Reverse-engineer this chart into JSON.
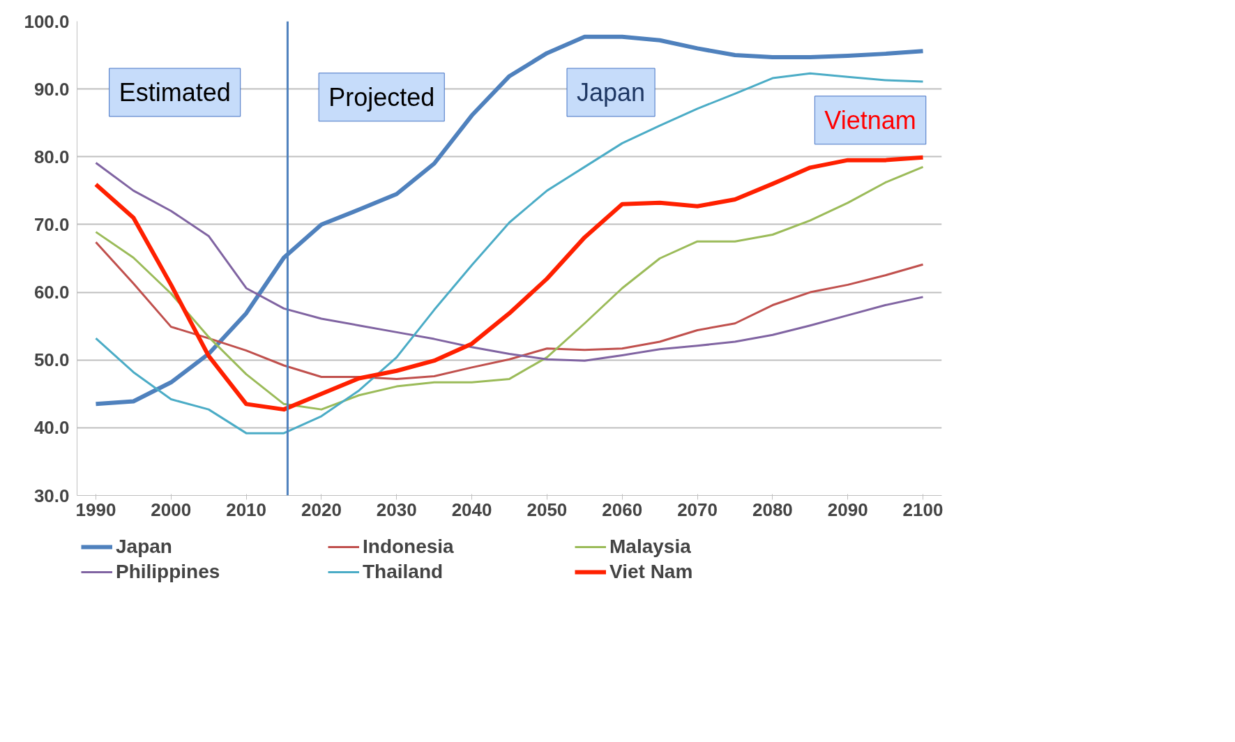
{
  "chart_data": {
    "type": "line",
    "x": [
      1990,
      1995,
      2000,
      2005,
      2010,
      2015,
      2020,
      2025,
      2030,
      2035,
      2040,
      2045,
      2050,
      2055,
      2060,
      2065,
      2070,
      2075,
      2080,
      2085,
      2090,
      2095,
      2100
    ],
    "series": [
      {
        "name": "Japan",
        "color": "#4f81bd",
        "values": [
          43.5,
          43.9,
          46.7,
          50.9,
          56.9,
          65.1,
          70.0,
          72.2,
          74.5,
          79.0,
          86.1,
          91.9,
          95.3,
          97.7,
          97.7,
          97.2,
          96.0,
          95.0,
          94.7,
          94.7,
          94.9,
          95.2,
          95.6
        ]
      },
      {
        "name": "Indonesia",
        "color": "#c0504d",
        "values": [
          67.4,
          61.3,
          54.9,
          53.2,
          51.4,
          49.2,
          47.5,
          47.5,
          47.2,
          47.6,
          48.9,
          50.1,
          51.7,
          51.5,
          51.7,
          52.7,
          54.4,
          55.4,
          58.1,
          60.0,
          61.1,
          62.5,
          64.1
        ]
      },
      {
        "name": "Malaysia",
        "color": "#9bbb59",
        "values": [
          68.9,
          65.1,
          59.8,
          53.4,
          47.9,
          43.5,
          42.7,
          44.8,
          46.1,
          46.7,
          46.7,
          47.2,
          50.4,
          55.4,
          60.6,
          65.0,
          67.5,
          67.5,
          68.5,
          70.6,
          73.2,
          76.2,
          78.5
        ]
      },
      {
        "name": "Philippines",
        "color": "#8064a2",
        "values": [
          79.1,
          75.0,
          72.0,
          68.3,
          60.6,
          57.6,
          56.1,
          55.1,
          54.1,
          53.1,
          51.9,
          50.9,
          50.1,
          49.9,
          50.7,
          51.6,
          52.1,
          52.7,
          53.7,
          55.1,
          56.6,
          58.1,
          59.3
        ]
      },
      {
        "name": "Thailand",
        "color": "#4bacc6",
        "values": [
          53.2,
          48.2,
          44.2,
          42.7,
          39.2,
          39.2,
          41.7,
          45.5,
          50.4,
          57.4,
          64.0,
          70.3,
          75.0,
          78.5,
          82.0,
          84.6,
          87.1,
          89.3,
          91.6,
          92.3,
          91.8,
          91.3,
          91.1
        ]
      },
      {
        "name": "Viet Nam",
        "color": "#ff2000",
        "values": [
          75.9,
          71.0,
          61.1,
          50.6,
          43.5,
          42.7,
          45.0,
          47.3,
          48.4,
          49.9,
          52.4,
          56.9,
          62.0,
          68.1,
          73.0,
          73.2,
          72.7,
          73.7,
          76.0,
          78.4,
          79.5,
          79.5,
          79.9
        ]
      }
    ],
    "xlim": [
      1987.5,
      2102.5
    ],
    "ylim": [
      30,
      100
    ],
    "xticks": [
      1990,
      2000,
      2010,
      2020,
      2030,
      2040,
      2050,
      2060,
      2070,
      2080,
      2090,
      2100
    ],
    "yticks": [
      {
        "value": 30,
        "label": "30.0"
      },
      {
        "value": 40,
        "label": "40.0"
      },
      {
        "value": 50,
        "label": "50.0"
      },
      {
        "value": 60,
        "label": "60.0"
      },
      {
        "value": 70,
        "label": "70.0"
      },
      {
        "value": 80,
        "label": "80.0"
      },
      {
        "value": 90,
        "label": "90.0"
      },
      {
        "value": 100,
        "label": "100.0"
      }
    ],
    "ref_lines": [
      {
        "axis": "x",
        "value": 2015.5,
        "color": "#4f81bd"
      }
    ],
    "annotations": [
      "Estimated",
      "Projected",
      "Japan",
      "Vietnam"
    ],
    "grid": "y",
    "legend": "bottom",
    "marker": "none",
    "line_style": "solid"
  }
}
